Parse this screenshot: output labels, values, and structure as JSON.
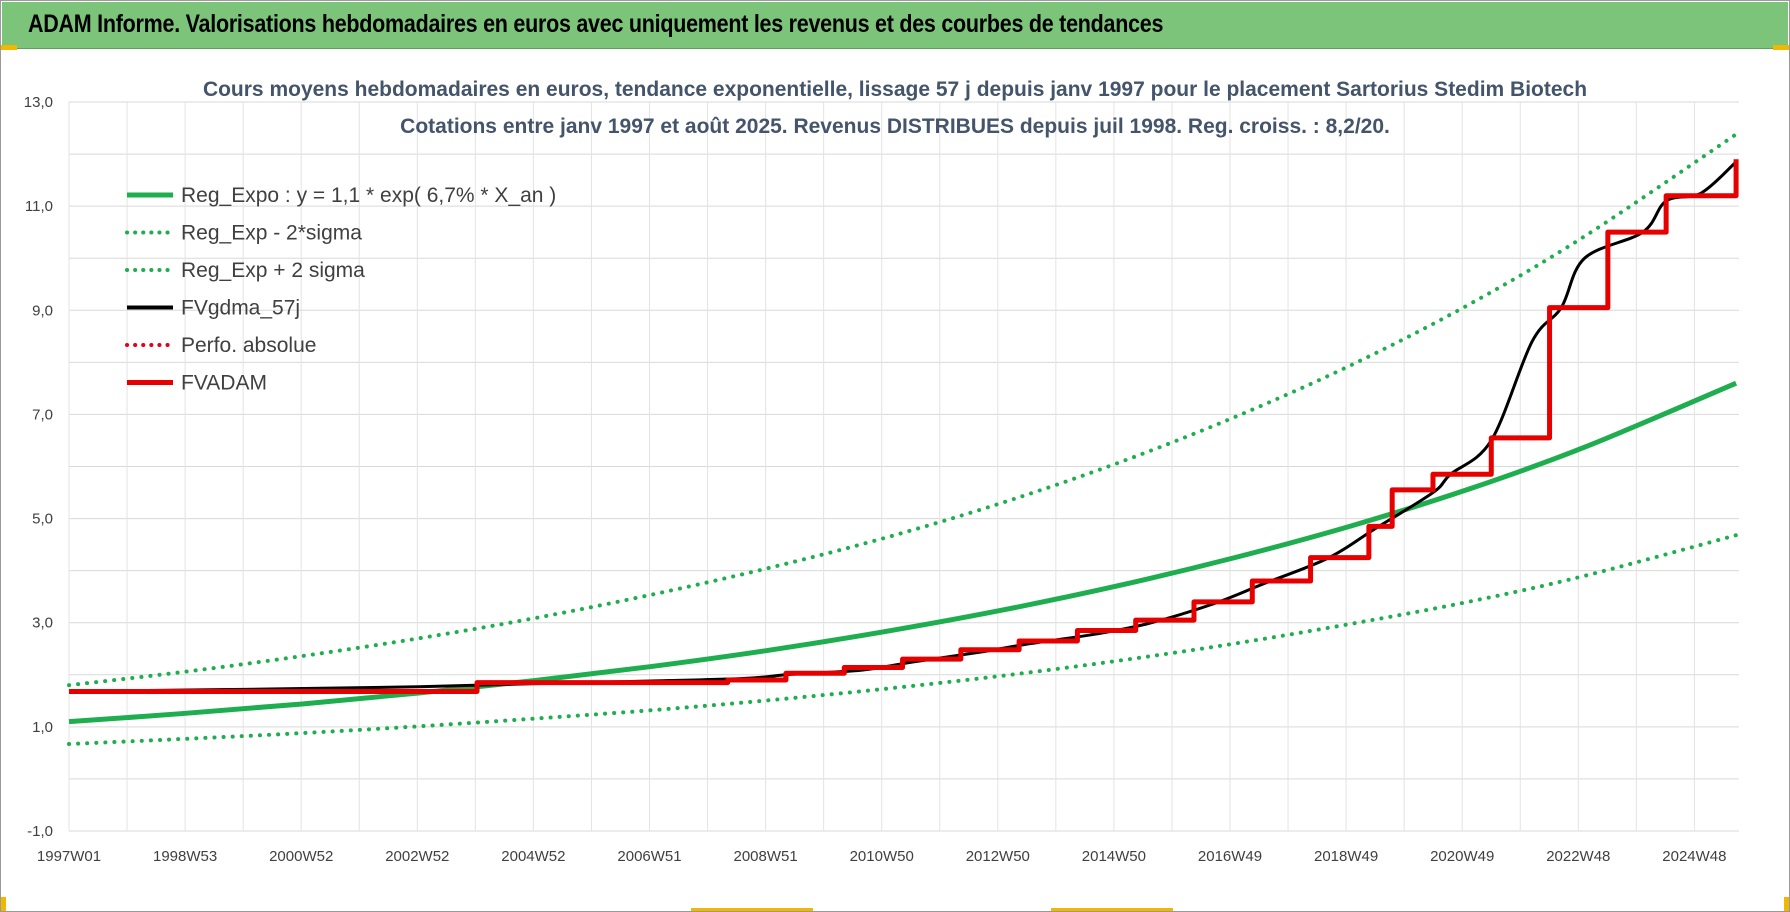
{
  "banner": {
    "title": "ADAM Informe. Valorisations hebdomadaires en euros avec uniquement les revenus et des courbes de tendances"
  },
  "chart_data": {
    "type": "line",
    "title": "Cours moyens hebdomadaires en euros, tendance exponentielle, lissage 57 j depuis janv 1997 pour le placement Sartorius Stedim Biotech",
    "subtitle": "Cotations entre janv 1997 et août 2025. Revenus DISTRIBUES depuis juil 1998. Reg. croiss. : 8,2/20.",
    "xlabel": "",
    "ylabel": "",
    "ylim": [
      -1.0,
      13.0
    ],
    "yticks": [
      "13,0",
      "11,0",
      "9,0",
      "7,0",
      "5,0",
      "3,0",
      "1,0",
      "-1,0"
    ],
    "xticks": [
      "1997W01",
      "1998W53",
      "2000W52",
      "2002W52",
      "2004W52",
      "2006W51",
      "2008W51",
      "2010W50",
      "2012W50",
      "2014W50",
      "2016W49",
      "2018W49",
      "2020W49",
      "2022W48",
      "2024W48"
    ],
    "xlim": [
      1997.0,
      2025.65
    ],
    "grid": true,
    "legend_position": "top-left",
    "series": [
      {
        "name": "Reg_Expo : y = 1,1 * exp( 6,7% *  X_an )",
        "style": "solid",
        "color": "#1fae4f",
        "x": [
          1997.0,
          1999.0,
          2001.0,
          2003.0,
          2005.0,
          2007.0,
          2009.0,
          2011.0,
          2013.0,
          2015.0,
          2017.0,
          2019.0,
          2021.0,
          2023.0,
          2025.6
        ],
        "values": [
          1.1,
          1.26,
          1.44,
          1.65,
          1.89,
          2.16,
          2.47,
          2.83,
          3.24,
          3.71,
          4.25,
          4.86,
          5.56,
          6.37,
          7.6
        ]
      },
      {
        "name": "Reg_Exp - 2*sigma",
        "style": "dotted",
        "color": "#1fae4f",
        "x": [
          1997.0,
          1999.0,
          2001.0,
          2003.0,
          2005.0,
          2007.0,
          2009.0,
          2011.0,
          2013.0,
          2015.0,
          2017.0,
          2019.0,
          2021.0,
          2023.0,
          2025.6
        ],
        "values": [
          0.67,
          0.77,
          0.88,
          1.01,
          1.16,
          1.32,
          1.51,
          1.73,
          1.98,
          2.27,
          2.6,
          2.98,
          3.4,
          3.9,
          4.68
        ]
      },
      {
        "name": "Reg_Exp + 2 sigma",
        "style": "dotted",
        "color": "#1fae4f",
        "x": [
          1997.0,
          1999.0,
          2001.0,
          2003.0,
          2005.0,
          2007.0,
          2009.0,
          2011.0,
          2013.0,
          2015.0,
          2017.0,
          2019.0,
          2021.0,
          2023.0,
          2025.6
        ],
        "values": [
          1.8,
          2.06,
          2.36,
          2.7,
          3.09,
          3.54,
          4.05,
          4.63,
          5.3,
          6.07,
          6.95,
          7.95,
          9.1,
          10.42,
          12.38
        ]
      },
      {
        "name": "FVgdma_57j",
        "style": "solid",
        "color": "#000000",
        "x": [
          1997.0,
          2000.0,
          2003.0,
          2005.0,
          2007.0,
          2008.6,
          2009.4,
          2010.6,
          2011.5,
          2012.6,
          2013.5,
          2014.6,
          2015.5,
          2016.6,
          2017.5,
          2018.6,
          2019.4,
          2020.4,
          2020.7,
          2021.4,
          2022.1,
          2022.6,
          2023.0,
          2024.0,
          2024.4,
          2025.0,
          2025.6
        ],
        "values": [
          1.68,
          1.72,
          1.77,
          1.83,
          1.88,
          1.93,
          2.01,
          2.09,
          2.25,
          2.43,
          2.6,
          2.78,
          2.98,
          3.35,
          3.75,
          4.24,
          4.8,
          5.5,
          5.85,
          6.5,
          8.4,
          9.05,
          10.0,
          10.5,
          11.1,
          11.25,
          11.85
        ]
      },
      {
        "name": "Perfo. absolue",
        "style": "dotted",
        "color": "#e2001a",
        "x": [],
        "values": []
      },
      {
        "name": "FVADAM",
        "style": "step",
        "color": "#e60000",
        "x": [
          1997.0,
          2004.0,
          2008.3,
          2009.3,
          2010.3,
          2011.3,
          2012.3,
          2013.3,
          2014.3,
          2015.3,
          2016.3,
          2017.3,
          2018.3,
          2019.3,
          2019.7,
          2020.4,
          2021.4,
          2022.4,
          2023.4,
          2024.4,
          2025.6
        ],
        "values": [
          1.68,
          1.85,
          1.9,
          2.03,
          2.14,
          2.3,
          2.48,
          2.65,
          2.85,
          3.05,
          3.4,
          3.8,
          4.25,
          4.85,
          5.55,
          5.85,
          6.55,
          9.05,
          10.5,
          11.2,
          11.9
        ]
      }
    ]
  }
}
